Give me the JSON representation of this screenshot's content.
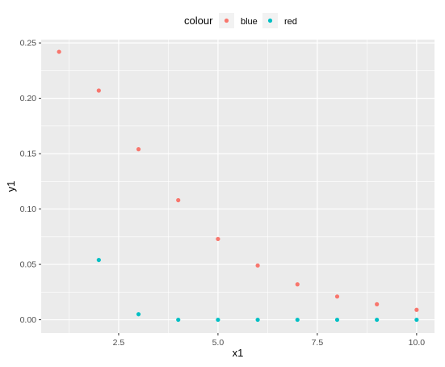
{
  "chart_data": {
    "type": "scatter",
    "title": "",
    "xlabel": "x1",
    "ylabel": "y1",
    "xlim": [
      0.55,
      10.45
    ],
    "ylim": [
      -0.012,
      0.253
    ],
    "x_ticks": [
      2.5,
      5.0,
      7.5,
      10.0
    ],
    "x_tick_labels": [
      "2.5",
      "5.0",
      "7.5",
      "10.0"
    ],
    "y_ticks": [
      0.0,
      0.05,
      0.1,
      0.15,
      0.2,
      0.25
    ],
    "y_tick_labels": [
      "0.00",
      "0.05",
      "0.10",
      "0.15",
      "0.20",
      "0.25"
    ],
    "grid": true,
    "legend": {
      "title": "colour",
      "position": "top",
      "entries": [
        "blue",
        "red"
      ]
    },
    "series": [
      {
        "name": "blue",
        "color": "#F8766D",
        "x": [
          1,
          2,
          3,
          4,
          5,
          6,
          7,
          8,
          9,
          10
        ],
        "y": [
          0.242,
          0.207,
          0.154,
          0.108,
          0.073,
          0.049,
          0.032,
          0.021,
          0.014,
          0.009
        ]
      },
      {
        "name": "red",
        "color": "#00BFC4",
        "x": [
          2,
          3,
          4,
          5,
          6,
          7,
          8,
          9,
          10
        ],
        "y": [
          0.054,
          0.005,
          0.0,
          0.0,
          0.0,
          0.0,
          0.0,
          0.0,
          0.0
        ]
      }
    ]
  }
}
